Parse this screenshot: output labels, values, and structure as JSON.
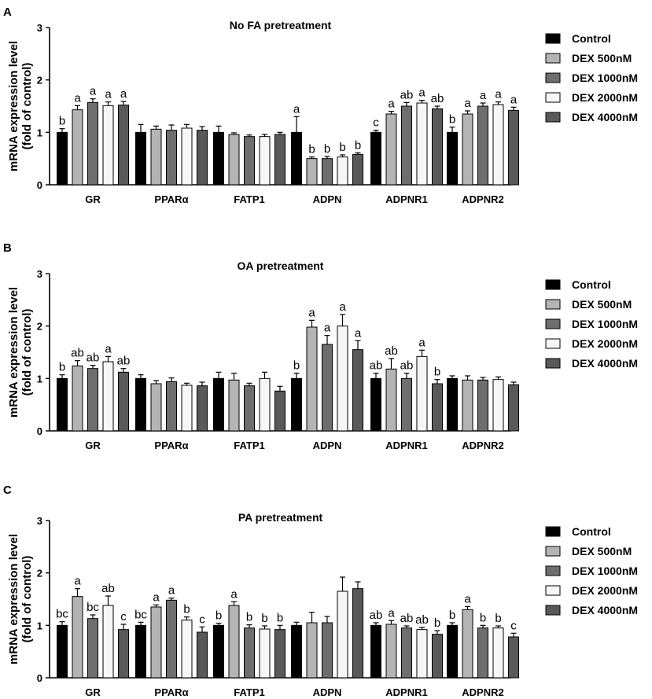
{
  "chart_data": [
    {
      "panel_label": "A",
      "type": "bar",
      "title": "No FA pretreatment",
      "ylabel_line1": "mRNA expression level",
      "ylabel_line2": "(fold of control)",
      "ylim": [
        0,
        3
      ],
      "yticks": [
        "0",
        "1",
        "2",
        "3"
      ],
      "categories": [
        "GR",
        "PPARα",
        "FATP1",
        "ADPN",
        "ADPNR1",
        "ADPNR2"
      ],
      "legend": [
        "Control",
        "DEX 500nM",
        "DEX 1000nM",
        "DEX 2000nM",
        "DEX 4000nM"
      ],
      "series": [
        {
          "name": "Control",
          "values": [
            1.0,
            1.0,
            1.0,
            1.0,
            1.0,
            1.0
          ],
          "errors": [
            0.07,
            0.15,
            0.12,
            0.3,
            0.04,
            0.1
          ],
          "letters": [
            "b",
            "",
            "",
            "a",
            "c",
            "b"
          ]
        },
        {
          "name": "DEX 500nM",
          "values": [
            1.43,
            1.06,
            0.96,
            0.5,
            1.35,
            1.35
          ],
          "errors": [
            0.08,
            0.06,
            0.03,
            0.03,
            0.05,
            0.06
          ],
          "letters": [
            "a",
            "",
            "",
            "b",
            "a",
            "a"
          ]
        },
        {
          "name": "DEX 1000nM",
          "values": [
            1.57,
            1.04,
            0.92,
            0.5,
            1.5,
            1.5
          ],
          "errors": [
            0.07,
            0.1,
            0.03,
            0.04,
            0.07,
            0.06
          ],
          "letters": [
            "a",
            "",
            "",
            "b",
            "ab",
            "a"
          ]
        },
        {
          "name": "DEX 2000nM",
          "values": [
            1.51,
            1.08,
            0.92,
            0.53,
            1.56,
            1.53
          ],
          "errors": [
            0.07,
            0.07,
            0.04,
            0.04,
            0.05,
            0.05
          ],
          "letters": [
            "a",
            "",
            "",
            "b",
            "a",
            "a"
          ]
        },
        {
          "name": "DEX 4000nM",
          "values": [
            1.52,
            1.04,
            0.96,
            0.58,
            1.45,
            1.42
          ],
          "errors": [
            0.07,
            0.07,
            0.04,
            0.03,
            0.05,
            0.06
          ],
          "letters": [
            "a",
            "",
            "",
            "b",
            "ab",
            "a"
          ]
        }
      ]
    },
    {
      "panel_label": "B",
      "type": "bar",
      "title": "OA pretreatment",
      "ylabel_line1": "mRNA expression level",
      "ylabel_line2": "(fold of control)",
      "ylim": [
        0,
        3
      ],
      "yticks": [
        "0",
        "1",
        "2",
        "3"
      ],
      "categories": [
        "GR",
        "PPARα",
        "FATP1",
        "ADPN",
        "ADPNR1",
        "ADPNR2"
      ],
      "legend": [
        "Control",
        "DEX 500nM",
        "DEX 1000nM",
        "DEX 2000nM",
        "DEX 4000nM"
      ],
      "series": [
        {
          "name": "Control",
          "values": [
            1.0,
            1.0,
            1.0,
            1.0,
            1.0,
            1.0
          ],
          "errors": [
            0.07,
            0.07,
            0.12,
            0.1,
            0.1,
            0.05
          ],
          "letters": [
            "b",
            "",
            "",
            "b",
            "ab",
            ""
          ]
        },
        {
          "name": "DEX 500nM",
          "values": [
            1.24,
            0.9,
            0.97,
            1.98,
            1.18,
            0.97
          ],
          "errors": [
            0.1,
            0.06,
            0.13,
            0.13,
            0.2,
            0.08
          ],
          "letters": [
            "ab",
            "",
            "",
            "a",
            "ab",
            ""
          ]
        },
        {
          "name": "DEX 1000nM",
          "values": [
            1.19,
            0.94,
            0.86,
            1.65,
            1.0,
            0.97
          ],
          "errors": [
            0.06,
            0.07,
            0.05,
            0.17,
            0.1,
            0.05
          ],
          "letters": [
            "ab",
            "",
            "",
            "a",
            "ab",
            ""
          ]
        },
        {
          "name": "DEX 2000nM",
          "values": [
            1.32,
            0.87,
            1.0,
            2.0,
            1.42,
            0.98
          ],
          "errors": [
            0.1,
            0.04,
            0.12,
            0.22,
            0.12,
            0.05
          ],
          "letters": [
            "a",
            "",
            "",
            "a",
            "a",
            ""
          ]
        },
        {
          "name": "DEX 4000nM",
          "values": [
            1.12,
            0.86,
            0.76,
            1.55,
            0.9,
            0.88
          ],
          "errors": [
            0.07,
            0.07,
            0.09,
            0.17,
            0.08,
            0.05
          ],
          "letters": [
            "ab",
            "",
            "",
            "a",
            "b",
            ""
          ]
        }
      ]
    },
    {
      "panel_label": "C",
      "type": "bar",
      "title": "PA pretreatment",
      "ylabel_line1": "mRNA expression level",
      "ylabel_line2": "(fold of control)",
      "ylim": [
        0,
        3
      ],
      "yticks": [
        "0",
        "1",
        "2",
        "3"
      ],
      "categories": [
        "GR",
        "PPARα",
        "FATP1",
        "ADPN",
        "ADPNR1",
        "ADPNR2"
      ],
      "legend": [
        "Control",
        "DEX 500nM",
        "DEX 1000nM",
        "DEX 2000nM",
        "DEX 4000nM"
      ],
      "series": [
        {
          "name": "Control",
          "values": [
            1.0,
            1.0,
            1.0,
            1.0,
            1.0,
            1.0
          ],
          "errors": [
            0.07,
            0.06,
            0.04,
            0.06,
            0.05,
            0.05
          ],
          "letters": [
            "bc",
            "bc",
            "b",
            "",
            "ab",
            "b"
          ]
        },
        {
          "name": "DEX 500nM",
          "values": [
            1.55,
            1.35,
            1.38,
            1.05,
            1.02,
            1.3
          ],
          "errors": [
            0.15,
            0.04,
            0.07,
            0.2,
            0.07,
            0.06
          ],
          "letters": [
            "a",
            "a",
            "a",
            "",
            "a",
            "a"
          ]
        },
        {
          "name": "DEX 1000nM",
          "values": [
            1.13,
            1.48,
            0.95,
            1.05,
            0.95,
            0.95
          ],
          "errors": [
            0.07,
            0.04,
            0.06,
            0.12,
            0.04,
            0.05
          ],
          "letters": [
            "bc",
            "a",
            "b",
            "",
            "ab",
            "b"
          ]
        },
        {
          "name": "DEX 2000nM",
          "values": [
            1.38,
            1.1,
            0.93,
            1.65,
            0.92,
            0.95
          ],
          "errors": [
            0.18,
            0.06,
            0.06,
            0.27,
            0.04,
            0.04
          ],
          "letters": [
            "ab",
            "b",
            "b",
            "",
            "ab",
            "b"
          ]
        },
        {
          "name": "DEX 4000nM",
          "values": [
            0.92,
            0.87,
            0.92,
            1.7,
            0.83,
            0.78
          ],
          "errors": [
            0.1,
            0.1,
            0.08,
            0.13,
            0.07,
            0.07
          ],
          "letters": [
            "c",
            "c",
            "b",
            "",
            "b",
            "c"
          ]
        }
      ]
    }
  ],
  "series_colors": [
    "#000000",
    "#b4b4b4",
    "#6e6e6e",
    "#f6f6f6",
    "#595959"
  ],
  "edge_color": "#000000"
}
